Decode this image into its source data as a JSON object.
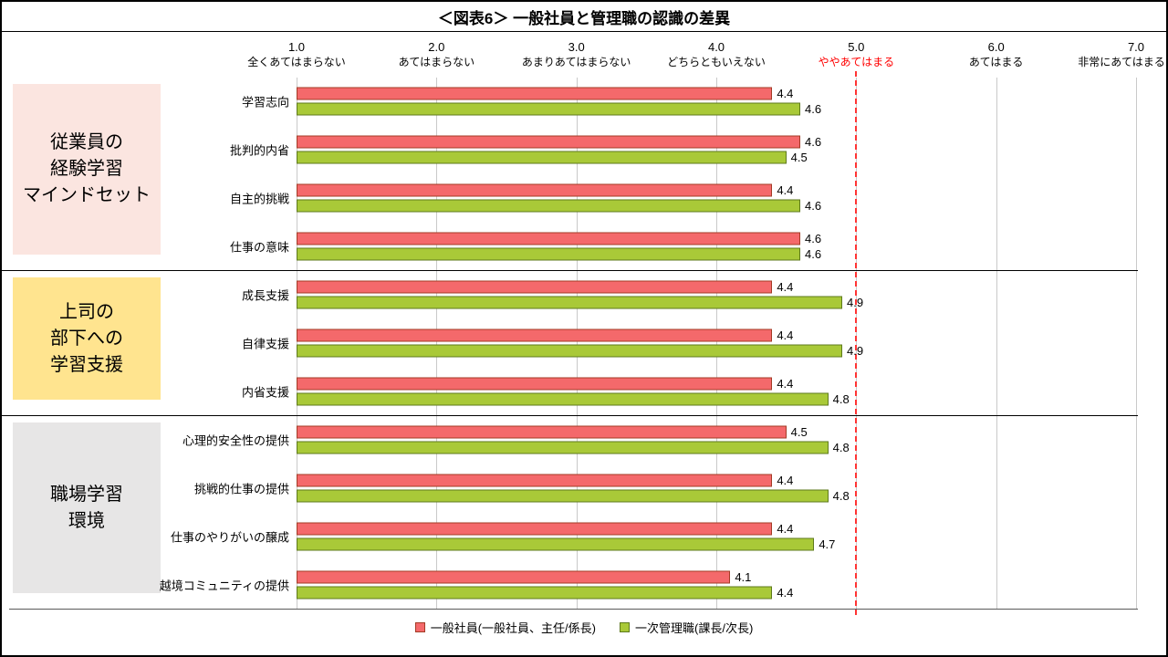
{
  "title": "＜図表6＞ 一般社員と管理職の認識の差異",
  "axis": {
    "min": 1.0,
    "max": 7.0,
    "reference_value": 5.0,
    "ticks": [
      {
        "value": "1.0",
        "label": "全くあてはまらない",
        "highlight": false
      },
      {
        "value": "2.0",
        "label": "あてはまらない",
        "highlight": false
      },
      {
        "value": "3.0",
        "label": "あまりあてはまらない",
        "highlight": false
      },
      {
        "value": "4.0",
        "label": "どちらともいえない",
        "highlight": false
      },
      {
        "value": "5.0",
        "label": "ややあてはまる",
        "highlight": true
      },
      {
        "value": "6.0",
        "label": "あてはまる",
        "highlight": false
      },
      {
        "value": "7.0",
        "label": "非常にあてはまる",
        "highlight": false
      }
    ]
  },
  "legend": [
    {
      "label": "一般社員(一般社員、主任/係長)"
    },
    {
      "label": "一次管理職(課長/次長)"
    }
  ],
  "colors": {
    "series": [
      {
        "fill": "#F4696B",
        "border": "#A33B25"
      },
      {
        "fill": "#A9C938",
        "border": "#5E7A1C"
      }
    ],
    "group_bg": [
      "#FBE5E0",
      "#FFE48F",
      "#E7E6E6"
    ],
    "grid": "#C9C9C9",
    "separator": "#000000",
    "reference_line": "#FF3333",
    "tick_highlight": "#FF0000"
  },
  "chart_data": {
    "type": "bar",
    "orientation": "horizontal",
    "xlim": [
      1.0,
      7.0
    ],
    "grid": true,
    "legend_position": "bottom",
    "series_names": [
      "一般社員(一般社員、主任/係長)",
      "一次管理職(課長/次長)"
    ],
    "groups": [
      {
        "name": "従業員の経験学習マインドセット",
        "label_lines": [
          "従業員の",
          "経験学習",
          "マインドセット"
        ],
        "items": [
          {
            "label": "学習志向",
            "values": [
              4.4,
              4.6
            ]
          },
          {
            "label": "批判的内省",
            "values": [
              4.6,
              4.5
            ]
          },
          {
            "label": "自主的挑戦",
            "values": [
              4.4,
              4.6
            ]
          },
          {
            "label": "仕事の意味",
            "values": [
              4.6,
              4.6
            ]
          }
        ]
      },
      {
        "name": "上司の部下への学習支援",
        "label_lines": [
          "上司の",
          "部下への",
          "学習支援"
        ],
        "items": [
          {
            "label": "成長支援",
            "values": [
              4.4,
              4.9
            ]
          },
          {
            "label": "自律支援",
            "values": [
              4.4,
              4.9
            ]
          },
          {
            "label": "内省支援",
            "values": [
              4.4,
              4.8
            ]
          }
        ]
      },
      {
        "name": "職場学習環境",
        "label_lines": [
          "職場学習",
          "環境"
        ],
        "items": [
          {
            "label": "心理的安全性の提供",
            "values": [
              4.5,
              4.8
            ]
          },
          {
            "label": "挑戦的仕事の提供",
            "values": [
              4.4,
              4.8
            ]
          },
          {
            "label": "仕事のやりがいの醸成",
            "values": [
              4.4,
              4.7
            ]
          },
          {
            "label": "越境コミュニティの提供",
            "values": [
              4.1,
              4.4
            ]
          }
        ]
      }
    ]
  }
}
